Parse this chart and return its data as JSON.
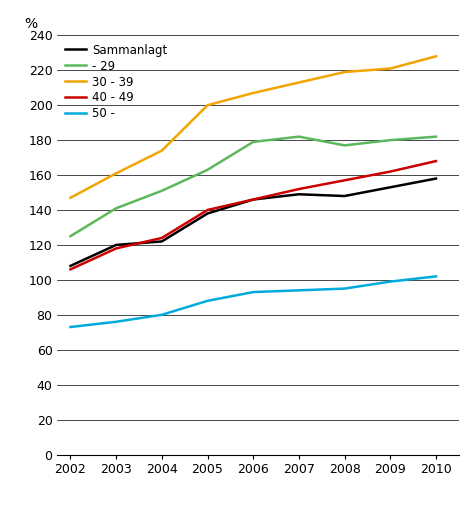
{
  "years": [
    2002,
    2003,
    2004,
    2005,
    2006,
    2007,
    2008,
    2009,
    2010
  ],
  "sammanlagt": [
    108,
    120,
    122,
    138,
    146,
    149,
    148,
    153,
    158
  ],
  "under29": [
    125,
    141,
    151,
    163,
    179,
    182,
    177,
    180,
    182
  ],
  "age30_39": [
    147,
    161,
    174,
    200,
    207,
    213,
    219,
    221,
    228
  ],
  "age40_49": [
    106,
    118,
    124,
    140,
    146,
    152,
    157,
    162,
    168
  ],
  "age50plus": [
    73,
    76,
    80,
    88,
    93,
    94,
    95,
    99,
    102
  ],
  "colors": {
    "sammanlagt": "#000000",
    "under29": "#5cb85c",
    "age30_39": "#f0a500",
    "age40_49": "#cc0000",
    "age50plus": "#00aadd"
  },
  "legend_labels": {
    "sammanlagt": "Sammanlagt",
    "under29": "- 29",
    "age30_39": "30 - 39",
    "age40_49": "40 - 49",
    "age50plus": "50 -"
  },
  "ylabel": "%",
  "ylim": [
    0,
    240
  ],
  "yticks": [
    0,
    20,
    40,
    60,
    80,
    100,
    120,
    140,
    160,
    180,
    200,
    220,
    240
  ],
  "xlim": [
    2001.7,
    2010.5
  ],
  "linewidth": 1.8,
  "background_color": "#ffffff",
  "grid_color": "#000000"
}
